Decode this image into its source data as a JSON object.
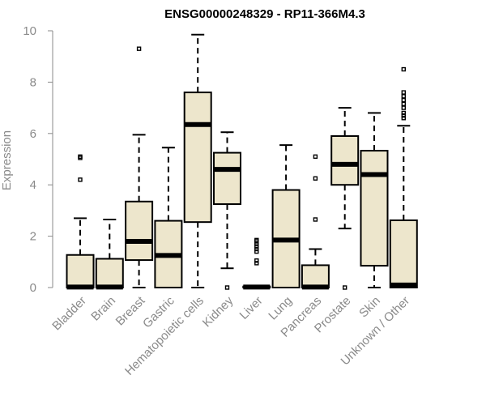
{
  "chart_data": {
    "type": "box",
    "title": "ENSG00000248329 - RP11-366M4.3",
    "xlabel": "",
    "ylabel": "Expression",
    "ylim": [
      0,
      10
    ],
    "yticks": [
      0,
      2,
      4,
      6,
      8,
      10
    ],
    "box_fill": "#ede6cc",
    "line_color": "#000000",
    "axis_color": "#8a8a8a",
    "categories": [
      "Bladder",
      "Brain",
      "Breast",
      "Gastric",
      "Hematopoietic cells",
      "Kidney",
      "Liver",
      "Lung",
      "Pancreas",
      "Prostate",
      "Skin",
      "Unknown / Other"
    ],
    "boxes": [
      {
        "name": "Bladder",
        "whisker_low": 0,
        "q1": 0,
        "median": 0.02,
        "q3": 1.27,
        "whisker_high": 2.7,
        "outliers": [
          4.2,
          5.05,
          5.1
        ]
      },
      {
        "name": "Brain",
        "whisker_low": 0,
        "q1": 0,
        "median": 0.02,
        "q3": 1.12,
        "whisker_high": 2.65,
        "outliers": []
      },
      {
        "name": "Breast",
        "whisker_low": 0,
        "q1": 1.07,
        "median": 1.8,
        "q3": 3.35,
        "whisker_high": 5.95,
        "outliers": [
          9.3
        ]
      },
      {
        "name": "Gastric",
        "whisker_low": 0,
        "q1": 0,
        "median": 1.25,
        "q3": 2.6,
        "whisker_high": 5.45,
        "outliers": []
      },
      {
        "name": "Hematopoietic cells",
        "whisker_low": 0,
        "q1": 2.55,
        "median": 6.35,
        "q3": 7.6,
        "whisker_high": 9.85,
        "outliers": []
      },
      {
        "name": "Kidney",
        "whisker_low": 0.75,
        "q1": 3.25,
        "median": 4.6,
        "q3": 5.25,
        "whisker_high": 6.05,
        "outliers": [
          0
        ]
      },
      {
        "name": "Liver",
        "whisker_low": 0,
        "q1": 0,
        "median": 0.02,
        "q3": 0.04,
        "whisker_high": 0.05,
        "outliers": [
          0.95,
          1.05,
          1.4,
          1.5,
          1.6,
          1.7,
          1.8,
          1.85
        ]
      },
      {
        "name": "Lung",
        "whisker_low": 0,
        "q1": 0,
        "median": 1.85,
        "q3": 3.8,
        "whisker_high": 5.55,
        "outliers": []
      },
      {
        "name": "Pancreas",
        "whisker_low": 0,
        "q1": 0,
        "median": 0.02,
        "q3": 0.87,
        "whisker_high": 1.5,
        "outliers": [
          2.65,
          4.25,
          5.1
        ]
      },
      {
        "name": "Prostate",
        "whisker_low": 2.3,
        "q1": 4.0,
        "median": 4.8,
        "q3": 5.9,
        "whisker_high": 7.0,
        "outliers": [
          0
        ]
      },
      {
        "name": "Skin",
        "whisker_low": 0,
        "q1": 0.85,
        "median": 4.4,
        "q3": 5.33,
        "whisker_high": 6.8,
        "outliers": []
      },
      {
        "name": "Unknown / Other",
        "whisker_low": 0,
        "q1": 0,
        "median": 0.1,
        "q3": 2.62,
        "whisker_high": 6.3,
        "outliers": [
          6.6,
          6.7,
          6.8,
          7.0,
          7.15,
          7.3,
          7.45,
          7.6,
          8.5
        ]
      }
    ]
  }
}
